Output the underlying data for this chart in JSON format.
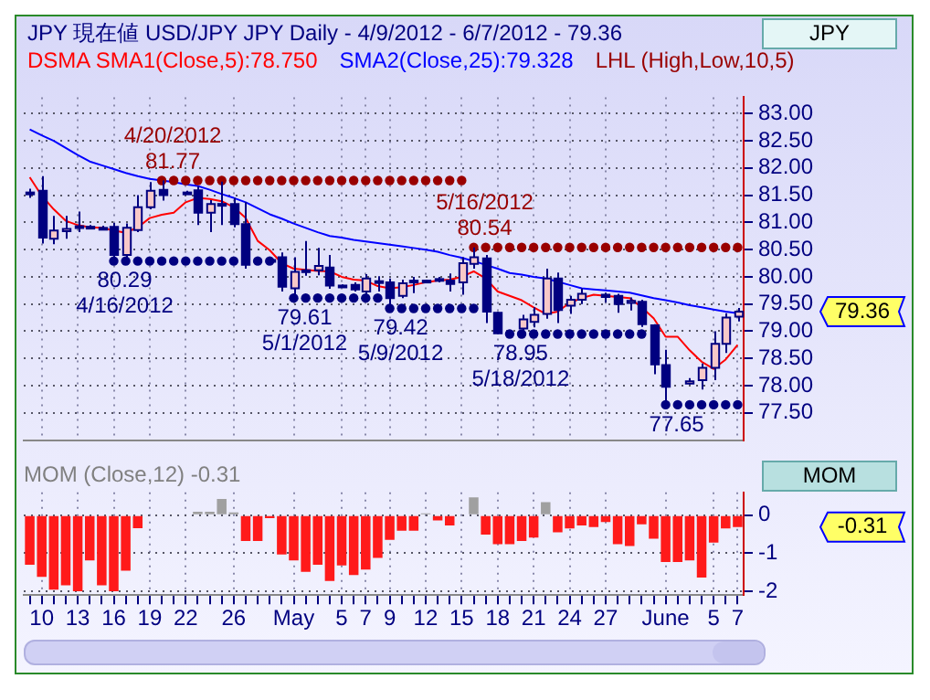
{
  "chart_data": [
    {
      "type": "candlestick",
      "title": "JPY 現在値 USD/JPY JPY Daily - 4/9/2012 - 6/7/2012 - 79.36",
      "ylabel": "JPY",
      "categories": [
        null,
        null,
        null,
        null,
        null,
        null,
        null,
        null,
        null,
        null,
        null,
        null,
        null,
        null,
        null,
        null,
        null,
        null,
        null,
        null,
        null,
        null,
        null,
        null,
        null,
        null,
        null,
        null,
        null,
        null,
        null,
        null,
        null,
        null,
        null,
        null,
        null,
        null,
        null,
        null,
        null,
        null,
        null,
        null,
        null,
        null,
        null,
        null,
        null,
        null,
        null,
        null,
        null,
        null,
        null,
        null,
        null,
        null,
        null,
        null
      ],
      "ohlc": [
        [
          81.55,
          81.62,
          81.45,
          81.55
        ],
        [
          81.58,
          81.85,
          80.61,
          80.72
        ],
        [
          80.7,
          81.12,
          80.6,
          80.85
        ],
        [
          80.84,
          81.12,
          80.7,
          80.88
        ],
        [
          80.93,
          81.2,
          80.82,
          80.9
        ],
        [
          80.91,
          80.95,
          80.88,
          80.92
        ],
        [
          80.9,
          80.94,
          80.87,
          80.9
        ],
        [
          80.92,
          80.99,
          80.29,
          80.4
        ],
        [
          80.4,
          80.98,
          80.35,
          80.9
        ],
        [
          80.86,
          81.5,
          80.82,
          81.28
        ],
        [
          81.28,
          81.74,
          81.24,
          81.58
        ],
        [
          81.6,
          81.77,
          81.4,
          81.5
        ],
        null,
        [
          81.55,
          81.58,
          81.52,
          81.54
        ],
        [
          81.59,
          81.66,
          80.95,
          81.18
        ],
        [
          81.18,
          81.41,
          80.82,
          81.34
        ],
        [
          81.34,
          81.75,
          80.95,
          81.31
        ],
        [
          81.34,
          81.45,
          80.91,
          80.97
        ],
        [
          80.97,
          81.37,
          80.15,
          80.22
        ],
        null,
        [
          80.31,
          80.33,
          80.28,
          80.3
        ],
        [
          80.36,
          80.45,
          79.73,
          79.82
        ],
        [
          79.79,
          80.36,
          79.61,
          80.09
        ],
        [
          80.1,
          80.66,
          80.02,
          80.12
        ],
        [
          80.12,
          80.53,
          80.03,
          80.2
        ],
        [
          80.17,
          80.4,
          79.78,
          79.84
        ],
        [
          79.84,
          79.86,
          79.81,
          79.83
        ],
        [
          79.85,
          79.9,
          79.73,
          79.77
        ],
        [
          79.73,
          80.05,
          79.65,
          79.97
        ],
        [
          79.92,
          80.01,
          79.73,
          79.9
        ],
        [
          79.9,
          79.97,
          79.42,
          79.61
        ],
        [
          79.65,
          79.95,
          79.61,
          79.88
        ],
        [
          79.93,
          80.0,
          79.7,
          79.9
        ],
        [
          79.9,
          79.95,
          79.88,
          79.93
        ],
        [
          79.96,
          80.0,
          79.9,
          79.95
        ],
        [
          79.93,
          80.06,
          79.73,
          79.87
        ],
        [
          79.9,
          80.36,
          79.67,
          80.25
        ],
        [
          80.24,
          80.54,
          80.15,
          80.36
        ],
        [
          80.34,
          80.4,
          79.15,
          79.36
        ],
        [
          79.34,
          79.36,
          78.95,
          78.96
        ],
        null,
        [
          79.05,
          79.3,
          78.98,
          79.22
        ],
        [
          79.17,
          79.44,
          79.07,
          79.3
        ],
        [
          79.32,
          80.15,
          79.23,
          79.97
        ],
        [
          79.97,
          80.08,
          79.15,
          79.39
        ],
        [
          79.47,
          79.65,
          79.32,
          79.58
        ],
        [
          79.58,
          79.79,
          79.5,
          79.69
        ],
        null,
        [
          79.67,
          79.71,
          79.53,
          79.63
        ],
        [
          79.65,
          79.69,
          79.34,
          79.5
        ],
        [
          79.52,
          79.62,
          79.38,
          79.56
        ],
        [
          79.54,
          79.58,
          79.08,
          79.13
        ],
        [
          79.11,
          79.13,
          78.21,
          78.39
        ],
        [
          78.38,
          78.66,
          77.65,
          77.98
        ],
        null,
        [
          78.04,
          78.14,
          78.02,
          78.08
        ],
        [
          78.1,
          78.41,
          77.93,
          78.33
        ],
        [
          78.33,
          79.0,
          78.1,
          78.77
        ],
        [
          78.77,
          79.33,
          78.6,
          79.25
        ],
        [
          79.27,
          79.43,
          79.18,
          79.36
        ]
      ],
      "series": [
        {
          "name": "DSMA SMA1(Close,5):78.750",
          "type": "line",
          "color": "#ff0000",
          "values": [
            81.83,
            81.49,
            81.24,
            81.03,
            80.95,
            80.91,
            80.9,
            80.85,
            80.81,
            80.91,
            81.08,
            81.14,
            81.18,
            81.37,
            81.45,
            81.43,
            81.39,
            81.28,
            81.08,
            80.66,
            80.49,
            80.25,
            80.15,
            80.13,
            80.11,
            80.1,
            80.0,
            79.95,
            79.93,
            79.83,
            79.79,
            79.81,
            79.85,
            79.9,
            79.93,
            79.95,
            80.0,
            80.1,
            79.97,
            79.73,
            79.65,
            79.57,
            79.44,
            79.32,
            79.36,
            79.52,
            79.61,
            79.67,
            79.65,
            79.63,
            79.61,
            79.44,
            79.24,
            78.9,
            78.9,
            78.65,
            78.44,
            78.31,
            78.48,
            78.75
          ]
        },
        {
          "name": "SMA2(Close,25):79.328",
          "type": "line",
          "color": "#0000ff",
          "values": [
            82.71,
            82.6,
            82.5,
            82.37,
            82.24,
            82.12,
            82.05,
            81.98,
            81.91,
            81.85,
            81.8,
            81.77,
            81.74,
            81.7,
            81.67,
            81.6,
            81.52,
            81.45,
            81.37,
            81.26,
            81.15,
            81.07,
            80.98,
            80.9,
            80.82,
            80.75,
            80.72,
            80.68,
            80.65,
            80.62,
            80.59,
            80.56,
            80.53,
            80.5,
            80.46,
            80.4,
            80.35,
            80.29,
            80.22,
            80.15,
            80.07,
            80.04,
            80.0,
            79.97,
            79.91,
            79.85,
            79.79,
            79.77,
            79.75,
            79.73,
            79.71,
            79.66,
            79.61,
            79.57,
            79.53,
            79.48,
            79.44,
            79.4,
            79.36,
            79.33
          ]
        },
        {
          "name": "LHL (High,Low,10,5)",
          "type": "scatter",
          "color": "#990000",
          "marker": "circle",
          "values": [
            null,
            null,
            null,
            null,
            null,
            null,
            null,
            null,
            null,
            null,
            null,
            81.77,
            81.77,
            81.77,
            81.77,
            81.77,
            81.77,
            81.77,
            81.77,
            81.77,
            81.77,
            81.77,
            81.77,
            81.77,
            81.77,
            81.77,
            81.77,
            81.77,
            81.77,
            81.77,
            81.77,
            81.77,
            81.77,
            81.77,
            81.77,
            81.77,
            81.77,
            80.54,
            80.54,
            80.54,
            80.54,
            80.54,
            80.54,
            80.54,
            80.54,
            80.54,
            80.54,
            80.54,
            80.54,
            80.54,
            80.54,
            80.54,
            80.54,
            80.54,
            80.54,
            80.54,
            80.54,
            80.54,
            80.54,
            80.54
          ]
        },
        {
          "type": "scatter",
          "color": "#000080",
          "marker": "circle",
          "values": [
            null,
            null,
            null,
            null,
            null,
            null,
            null,
            80.29,
            80.29,
            80.29,
            80.29,
            80.29,
            80.29,
            80.29,
            80.29,
            80.29,
            80.29,
            80.29,
            null,
            80.29,
            80.29,
            null,
            79.61,
            79.61,
            79.61,
            79.61,
            79.61,
            79.61,
            79.61,
            79.61,
            79.42,
            79.42,
            79.42,
            79.42,
            79.42,
            79.42,
            79.42,
            79.42,
            null,
            null,
            78.95,
            78.95,
            78.95,
            78.95,
            78.95,
            78.95,
            78.95,
            78.95,
            78.95,
            78.95,
            78.95,
            78.95,
            null,
            77.65,
            77.65,
            77.65,
            77.65,
            77.65,
            77.65,
            77.65
          ]
        }
      ],
      "ylim": [
        77.0,
        83.3
      ],
      "yticks": [
        {
          "value": 77.5,
          "label": "77.50"
        },
        {
          "value": 78,
          "label": "78.00"
        },
        {
          "value": 78.5,
          "label": "78.50"
        },
        {
          "value": 79,
          "label": "79.00"
        },
        {
          "value": 79.5,
          "label": "79.50"
        },
        {
          "value": 80,
          "label": "80.00"
        },
        {
          "value": 80.5,
          "label": "80.50"
        },
        {
          "value": 81,
          "label": "81.00"
        },
        {
          "value": 81.5,
          "label": "81.50"
        },
        {
          "value": 82,
          "label": "82.00"
        },
        {
          "value": 82.5,
          "label": "82.50"
        },
        {
          "value": 83,
          "label": "83.00"
        }
      ],
      "annotations": [
        {
          "text": "4/20/2012",
          "y": 81.77
        },
        {
          "text": "81.77",
          "y": 81.77
        },
        {
          "text": "80.29",
          "y": 80.29
        },
        {
          "text": "4/16/2012",
          "y": 80.29
        },
        {
          "text": "79.61",
          "y": 79.61
        },
        {
          "text": "5/1/2012",
          "y": 79.61
        },
        {
          "text": "79.42",
          "y": 79.42
        },
        {
          "text": "5/9/2012",
          "y": 79.42
        },
        {
          "text": "5/16/2012",
          "y": 80.54
        },
        {
          "text": "80.54",
          "y": 80.54
        },
        {
          "text": "78.95",
          "y": 78.95
        },
        {
          "text": "5/18/2012",
          "y": 78.95
        },
        {
          "text": "77.65",
          "y": 77.65
        },
        "79.36"
      ],
      "grid": true,
      "legend": "top left",
      "tick_labels": "y"
    },
    {
      "type": "bar",
      "title": "MOM (Close,12) -0.31",
      "ylabel": "MOM",
      "categories": [
        null,
        "10",
        null,
        null,
        "13",
        null,
        null,
        "16",
        null,
        null,
        "19",
        null,
        null,
        "22",
        null,
        null,
        null,
        "26",
        null,
        null,
        null,
        null,
        "May",
        null,
        null,
        null,
        "5",
        null,
        "7",
        null,
        "9",
        null,
        null,
        "12",
        null,
        null,
        "15",
        null,
        null,
        "18",
        null,
        null,
        "21",
        null,
        null,
        "24",
        null,
        null,
        "27",
        null,
        null,
        null,
        null,
        "June",
        null,
        null,
        null,
        "5",
        null,
        "7"
      ],
      "values": [
        -1.3,
        -1.62,
        -1.96,
        -1.84,
        -2.0,
        -1.19,
        -1.84,
        -2.0,
        -1.46,
        -0.34,
        null,
        null,
        null,
        null,
        0.09,
        0.09,
        0.43,
        0.07,
        -0.68,
        -0.68,
        -0.08,
        -1.03,
        -1.19,
        -1.49,
        -1.3,
        -1.73,
        -1.32,
        -1.57,
        -1.43,
        -1.12,
        -0.65,
        -0.41,
        -0.41,
        0.05,
        -0.14,
        -0.27,
        null,
        0.47,
        -0.51,
        -0.76,
        -0.76,
        -0.68,
        -0.59,
        0.34,
        -0.45,
        -0.35,
        -0.27,
        -0.31,
        -0.18,
        -0.76,
        -0.81,
        -0.24,
        -0.62,
        -1.23,
        -1.23,
        -1.19,
        -1.64,
        -0.72,
        -0.35,
        -0.31
      ],
      "colors": [
        "#ff1a1a",
        "#ff1a1a",
        "#ff1a1a",
        "#ff1a1a",
        "#ff1a1a",
        "#ff1a1a",
        "#ff1a1a",
        "#ff1a1a",
        "#ff1a1a",
        "#ff1a1a",
        "#ff1a1a",
        "#ff1a1a",
        "#ff1a1a",
        "#ff1a1a",
        "#a0a0a0",
        "#a0a0a0",
        "#a0a0a0",
        "#a0a0a0",
        "#ff1a1a",
        "#ff1a1a",
        "#ff1a1a",
        "#ff1a1a",
        "#ff1a1a",
        "#ff1a1a",
        "#ff1a1a",
        "#ff1a1a",
        "#ff1a1a",
        "#ff1a1a",
        "#ff1a1a",
        "#ff1a1a",
        "#ff1a1a",
        "#ff1a1a",
        "#ff1a1a",
        "#a0a0a0",
        "#ff1a1a",
        "#ff1a1a",
        "#ff1a1a",
        "#a0a0a0",
        "#ff1a1a",
        "#ff1a1a",
        "#ff1a1a",
        "#ff1a1a",
        "#ff1a1a",
        "#a0a0a0",
        "#ff1a1a",
        "#ff1a1a",
        "#ff1a1a",
        "#ff1a1a",
        "#ff1a1a",
        "#ff1a1a",
        "#ff1a1a",
        "#ff1a1a",
        "#ff1a1a",
        "#ff1a1a",
        "#ff1a1a",
        "#ff1a1a",
        "#ff1a1a",
        "#ff1a1a",
        "#ff1a1a",
        "#ff1a1a"
      ],
      "ylim": [
        -2.1,
        0.6
      ],
      "yticks": [
        0,
        -1,
        -2
      ],
      "annotations": [
        "-0.31"
      ],
      "grid": true
    }
  ]
}
